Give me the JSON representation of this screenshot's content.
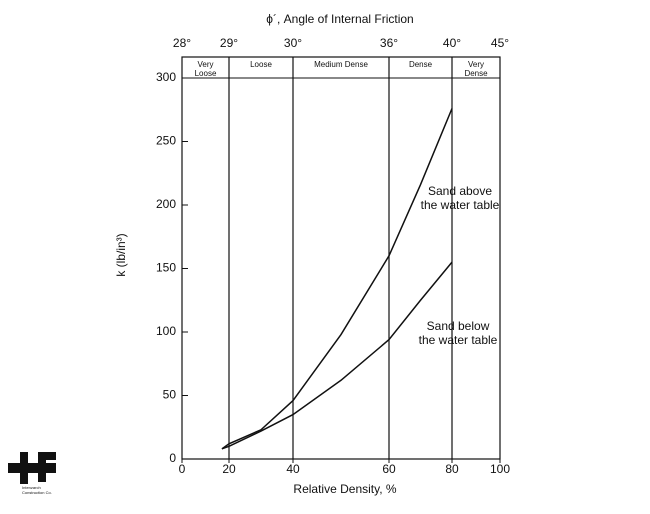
{
  "chart_data": {
    "type": "line",
    "title": "ϕ´, Angle of Internal Friction",
    "x_label": "Relative Density, %",
    "y_label": "k (lb/in³)",
    "top_ticks": [
      "28°",
      "29°",
      "30°",
      "36°",
      "40°",
      "45°"
    ],
    "zones": [
      "Very Loose",
      "Loose",
      "Medium Dense",
      "Dense",
      "Very Dense"
    ],
    "xlim": [
      0,
      100
    ],
    "xticks": [
      0,
      20,
      40,
      60,
      80,
      100
    ],
    "ylim": [
      0,
      300
    ],
    "yticks": [
      0,
      50,
      100,
      150,
      200,
      250,
      300
    ],
    "series": [
      {
        "name": "Sand above the water table",
        "color": "#111111",
        "x": [
          17,
          20,
          30,
          40,
          50,
          60,
          70,
          80
        ],
        "values": [
          8,
          12,
          23,
          46,
          98,
          160,
          216,
          276
        ]
      },
      {
        "name": "Sand below the water table",
        "color": "#111111",
        "x": [
          17,
          20,
          30,
          40,
          50,
          60,
          70,
          80
        ],
        "values": [
          8,
          10,
          22,
          35,
          62,
          94,
          125,
          155
        ]
      }
    ],
    "logo_text": "Intenzarch Construction Co."
  }
}
